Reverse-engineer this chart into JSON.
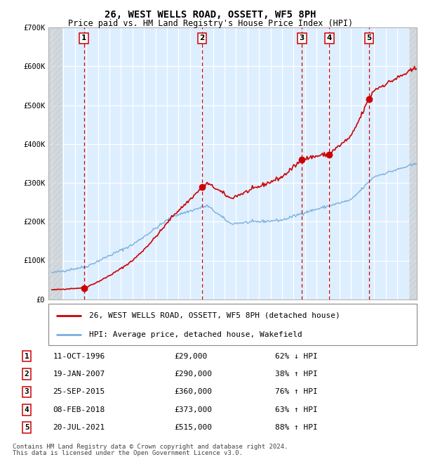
{
  "title1": "26, WEST WELLS ROAD, OSSETT, WF5 8PH",
  "title2": "Price paid vs. HM Land Registry's House Price Index (HPI)",
  "ylim": [
    0,
    700000
  ],
  "yticks": [
    0,
    100000,
    200000,
    300000,
    400000,
    500000,
    600000,
    700000
  ],
  "ytick_labels": [
    "£0",
    "£100K",
    "£200K",
    "£300K",
    "£400K",
    "£500K",
    "£600K",
    "£700K"
  ],
  "xlim_start": 1993.7,
  "xlim_end": 2025.7,
  "xtick_years": [
    1994,
    1995,
    1996,
    1997,
    1998,
    1999,
    2000,
    2001,
    2002,
    2003,
    2004,
    2005,
    2006,
    2007,
    2008,
    2009,
    2010,
    2011,
    2012,
    2013,
    2014,
    2015,
    2016,
    2017,
    2018,
    2019,
    2020,
    2021,
    2022,
    2023,
    2024,
    2025
  ],
  "sales": [
    {
      "num": 1,
      "date": "11-OCT-1996",
      "price": 29000,
      "pct": "62%",
      "dir": "↓",
      "year": 1996.78
    },
    {
      "num": 2,
      "date": "19-JAN-2007",
      "price": 290000,
      "pct": "38%",
      "dir": "↑",
      "year": 2007.05
    },
    {
      "num": 3,
      "date": "25-SEP-2015",
      "price": 360000,
      "pct": "76%",
      "dir": "↑",
      "year": 2015.73
    },
    {
      "num": 4,
      "date": "08-FEB-2018",
      "price": 373000,
      "pct": "63%",
      "dir": "↑",
      "year": 2018.1
    },
    {
      "num": 5,
      "date": "20-JUL-2021",
      "price": 515000,
      "pct": "88%",
      "dir": "↑",
      "year": 2021.55
    }
  ],
  "legend_label_red": "26, WEST WELLS ROAD, OSSETT, WF5 8PH (detached house)",
  "legend_label_blue": "HPI: Average price, detached house, Wakefield",
  "footnote1": "Contains HM Land Registry data © Crown copyright and database right 2024.",
  "footnote2": "This data is licensed under the Open Government Licence v3.0.",
  "red_color": "#cc0000",
  "blue_color": "#7aafdd",
  "bg_color": "#ddeeff",
  "grid_color": "#ffffff",
  "hatch_color": "#c8c8c8"
}
